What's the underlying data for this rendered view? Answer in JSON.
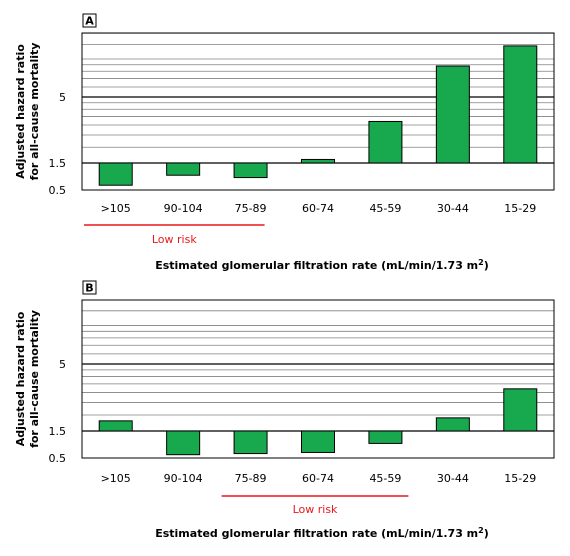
{
  "colors": {
    "bar": "#18a84e",
    "risk": "#e8191b",
    "grid": "#000000"
  },
  "x_label_prefix": "Estimated glomerular filtration rate (mL/min/1.73 m",
  "x_label_sup": "2",
  "x_label_suffix": ")",
  "y_label_line1": "Adjusted hazard ratio",
  "y_label_line2": "for all-cause mortality",
  "chart_data": [
    {
      "type": "bar",
      "panel": "A",
      "categories": [
        ">105",
        "90-104",
        "75-89",
        "60-74",
        "45-59",
        "30-44",
        "15-29"
      ],
      "values": [
        1.0,
        1.2,
        1.15,
        1.6,
        3.2,
        8.8,
        12.7
      ],
      "ylim": [
        0.5,
        23
      ],
      "yticks": [
        "5",
        "1.5",
        "0.5"
      ],
      "low_risk_label": "Low risk",
      "low_risk_range": [
        "90-104",
        "75-89"
      ]
    },
    {
      "type": "bar",
      "panel": "B",
      "categories": [
        ">105",
        "90-104",
        "75-89",
        "60-74",
        "45-59",
        "30-44",
        "15-29"
      ],
      "values": [
        1.8,
        0.98,
        1.0,
        1.02,
        1.2,
        1.9,
        3.2
      ],
      "ylim": [
        0.5,
        23
      ],
      "yticks": [
        "5",
        "1.5",
        "0.5"
      ],
      "low_risk_label": "Low risk",
      "low_risk_range": [
        "75-89",
        "45-59"
      ]
    }
  ]
}
